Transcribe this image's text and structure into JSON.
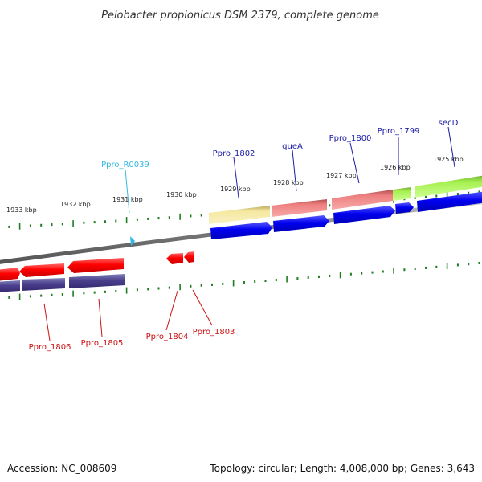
{
  "title": "Pelobacter propionicus DSM 2379, complete genome",
  "footer": {
    "accession": "Accession: NC_008609",
    "topology": "Topology: circular; Length: 4,008,000 bp; Genes: 3,643"
  },
  "colors": {
    "background": "#ffffff",
    "tick": "#1e7d1e",
    "backbone": "#808080",
    "forward_label": "#1a1aa8",
    "reverse_label": "#cc1111",
    "rna_label": "#33b9e0"
  },
  "kbp_labels": [
    "1933 kbp",
    "1932 kbp",
    "1931 kbp",
    "1930 kbp",
    "1929 kbp",
    "1928 kbp",
    "1927 kbp",
    "1926 kbp",
    "1925 kbp"
  ],
  "genes": {
    "forward": [
      "Ppro_1802",
      "queA",
      "Ppro_1800",
      "Ppro_1799",
      "secD"
    ],
    "rna": [
      "Ppro_R0039"
    ],
    "reverse": [
      "Ppro_1806",
      "Ppro_1805",
      "Ppro_1804",
      "Ppro_1803"
    ]
  }
}
